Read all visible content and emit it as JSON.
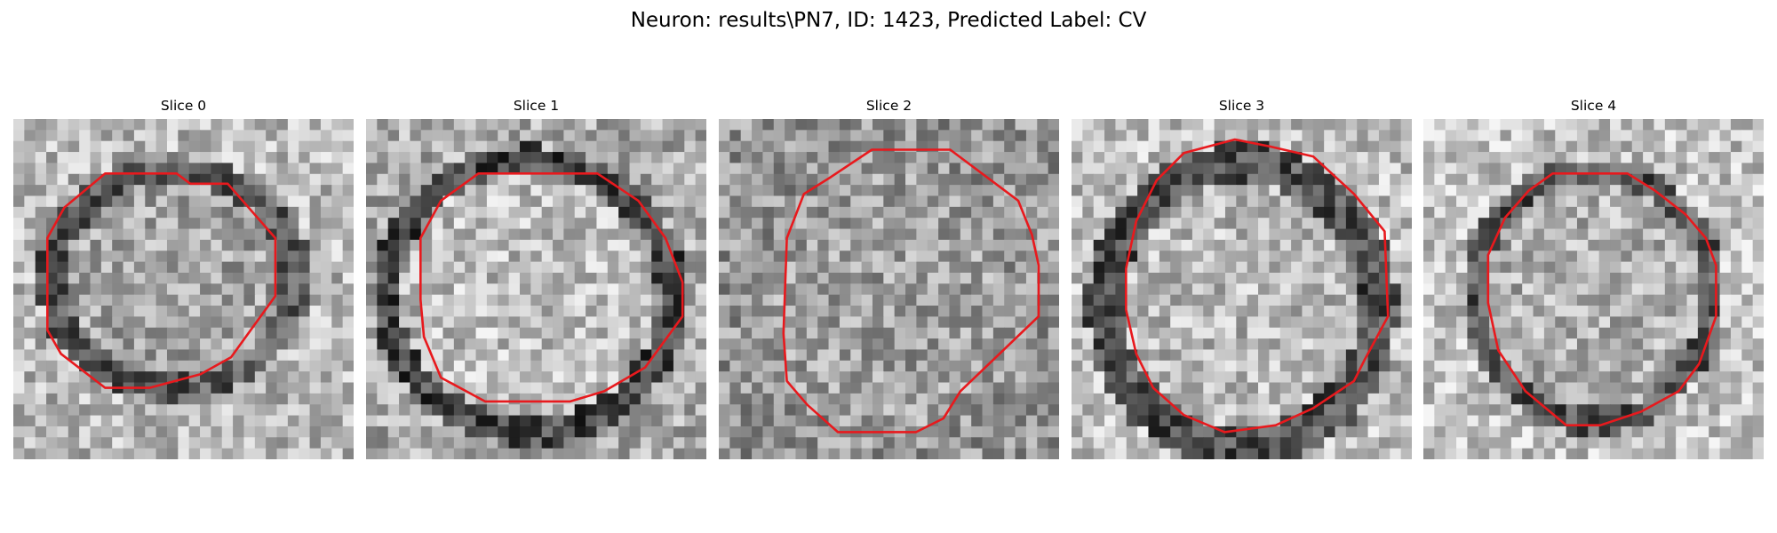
{
  "figure": {
    "title": "Neuron: results\\PN7, ID: 1423, Predicted Label: CV"
  },
  "panels": [
    {
      "title": "Slice 0"
    },
    {
      "title": "Slice 1"
    },
    {
      "title": "Slice 2"
    },
    {
      "title": "Slice 3"
    },
    {
      "title": "Slice 4"
    }
  ],
  "colors": {
    "contour": "#e8191d",
    "background": "#ffffff"
  }
}
